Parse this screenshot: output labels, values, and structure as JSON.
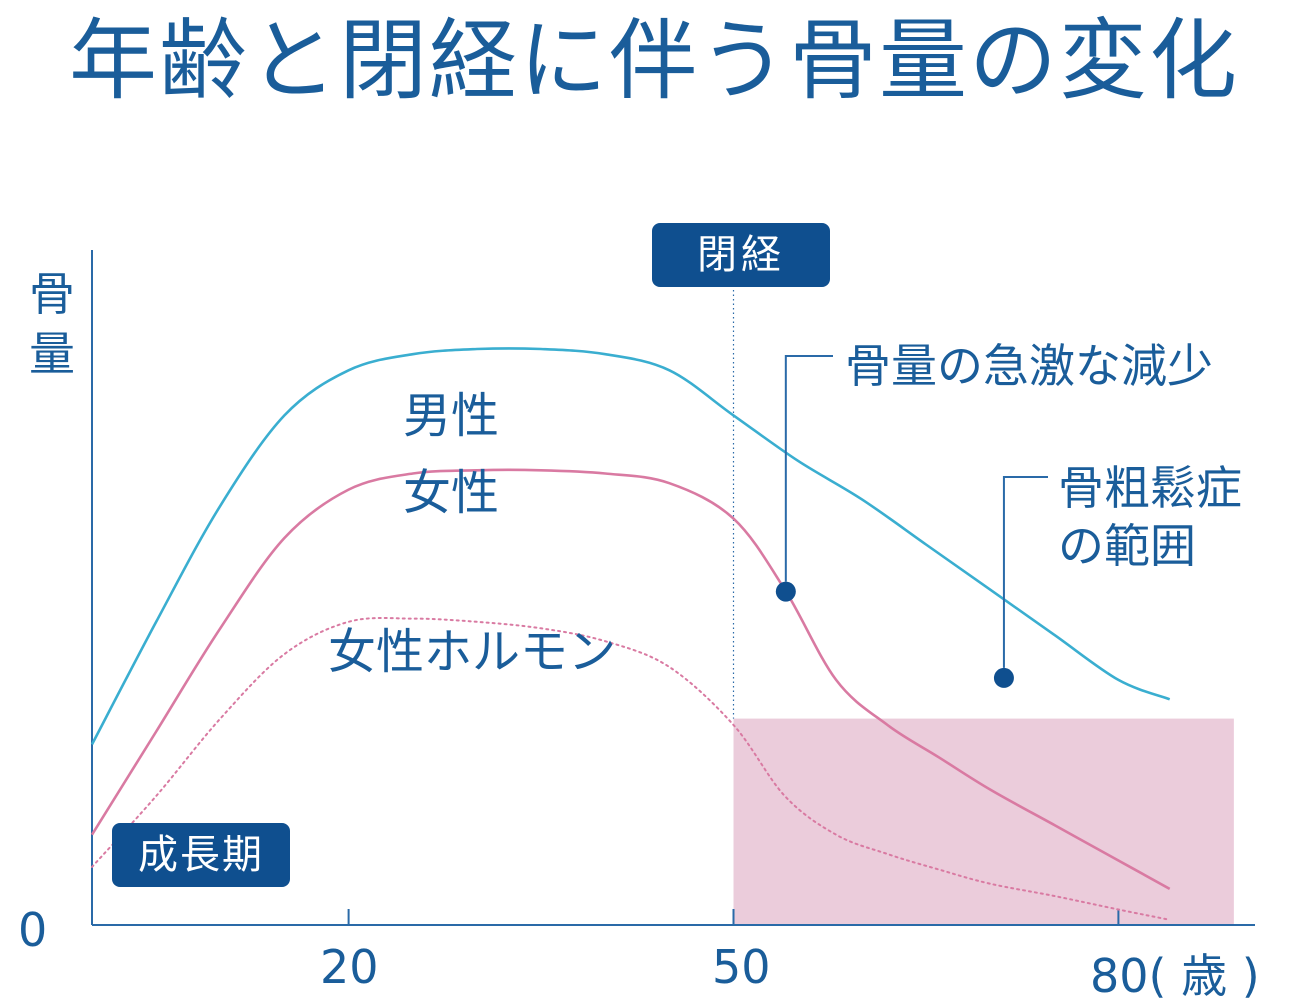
{
  "title": "年齢と閉経に伴う骨量の変化",
  "chart_data": {
    "type": "line",
    "ylabel": [
      "骨",
      "量"
    ],
    "y_origin_label": "0",
    "x_ticks": [
      {
        "value": 20,
        "label": "20"
      },
      {
        "value": 50,
        "label": "50"
      },
      {
        "value": 80,
        "label": "80( 歳 )"
      }
    ],
    "xlim": [
      0,
      89
    ],
    "ylim": [
      0,
      100
    ],
    "series": [
      {
        "name": "男性",
        "color": "#3aaed0",
        "style": "solid",
        "x": [
          0,
          5,
          10,
          15,
          20,
          25,
          30,
          35,
          40,
          45,
          50,
          55,
          60,
          65,
          70,
          75,
          80,
          84
        ],
        "y": [
          28,
          47,
          65,
          79,
          86,
          88.5,
          89.3,
          89.3,
          88.5,
          86,
          79,
          72,
          66,
          59,
          52,
          45,
          38,
          35
        ]
      },
      {
        "name": "女性",
        "color": "#d97aa2",
        "style": "solid",
        "x": [
          0,
          5,
          10,
          15,
          20,
          25,
          30,
          35,
          40,
          45,
          50,
          54,
          58,
          62,
          66,
          70,
          75,
          80,
          84
        ],
        "y": [
          14,
          30,
          46,
          60,
          67.5,
          70,
          70.5,
          70.5,
          70,
          68.5,
          63,
          52,
          38,
          31,
          26,
          21,
          15.5,
          10,
          5.6
        ]
      },
      {
        "name": "女性ホルモン",
        "color": "#d97aa2",
        "style": "dotted",
        "x": [
          0,
          5,
          10,
          15,
          20,
          25,
          30,
          35,
          40,
          45,
          50,
          54,
          58,
          62,
          66,
          70,
          75,
          80,
          84
        ],
        "y": [
          9,
          20,
          32,
          42,
          47,
          47.5,
          47,
          46,
          44,
          40,
          31,
          20,
          14,
          11,
          8.6,
          6.4,
          4.5,
          2.4,
          0.8
        ]
      }
    ],
    "osteoporosis_range": {
      "label": [
        "骨粗鬆症",
        "の範囲"
      ],
      "x": [
        50,
        89
      ],
      "y_max": 32,
      "color": "#ebccdb"
    },
    "menopause": {
      "x": 50,
      "label": "閉経"
    },
    "growth_period_label": "成長期",
    "annotations": [
      {
        "text": "骨量の急激な減少",
        "x": 54,
        "y": 52
      },
      {
        "text": [
          "骨粗鬆症",
          "の範囲"
        ],
        "x": 71,
        "y": 38
      }
    ],
    "series_labels": [
      "男性",
      "女性",
      "女性ホルモン"
    ],
    "grid": false
  }
}
